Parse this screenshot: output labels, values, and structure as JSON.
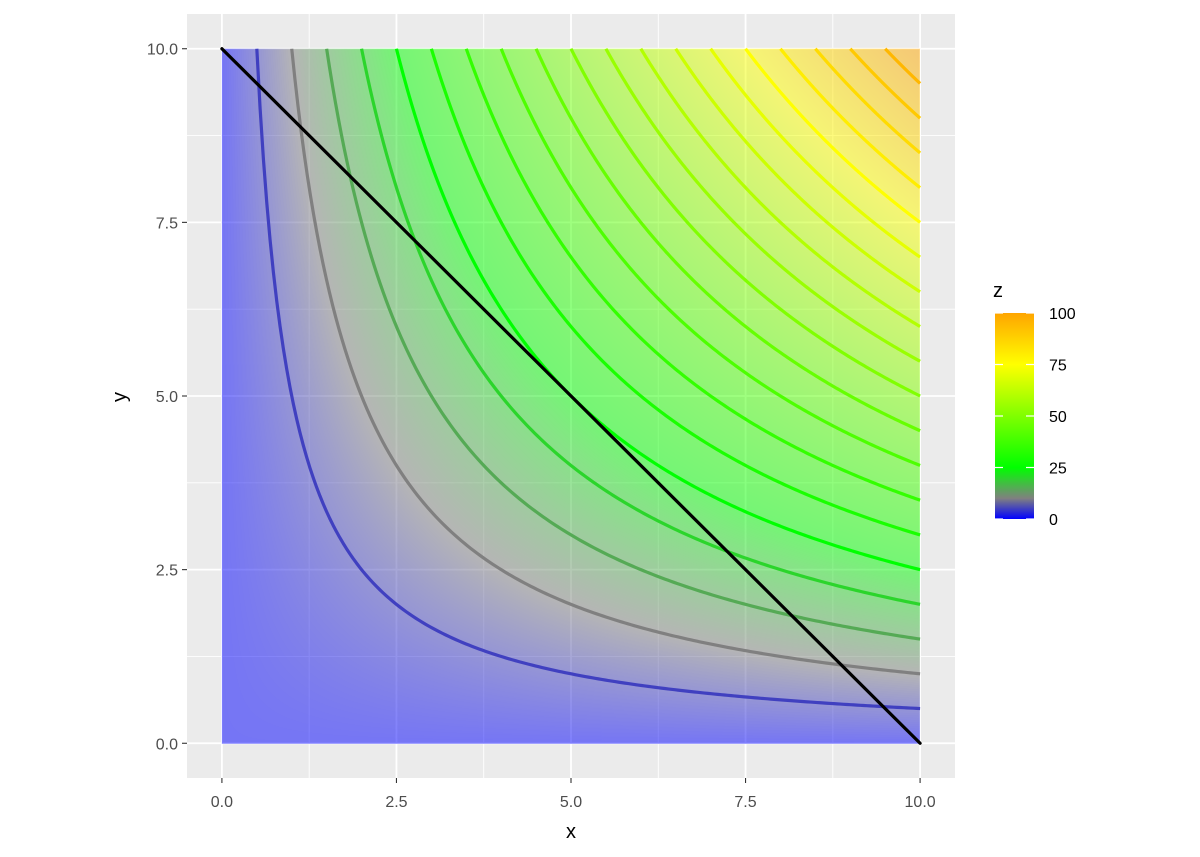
{
  "chart_data": {
    "type": "heatmap",
    "function": "z = x * y",
    "x_range": [
      0,
      10
    ],
    "y_range": [
      0,
      10
    ],
    "xlim": [
      -0.5,
      10.5
    ],
    "ylim": [
      -0.5,
      10.5
    ],
    "xlabel": "x",
    "ylabel": "y",
    "x_ticks": [
      "0.0",
      "2.5",
      "5.0",
      "7.5",
      "10.0"
    ],
    "y_ticks": [
      "0.0",
      "2.5",
      "5.0",
      "7.5",
      "10.0"
    ],
    "x_tick_values": [
      0,
      2.5,
      5,
      7.5,
      10
    ],
    "y_tick_values": [
      0,
      2.5,
      5,
      7.5,
      10
    ],
    "contour_levels": [
      5,
      10,
      15,
      20,
      25,
      30,
      35,
      40,
      45,
      50,
      55,
      60,
      65,
      70,
      75,
      80,
      85,
      90,
      95
    ],
    "line": {
      "x": [
        0,
        10
      ],
      "y": [
        10,
        0
      ],
      "color": "#000000"
    },
    "colorscale": [
      {
        "value": 0,
        "color": "#0000ff"
      },
      {
        "value": 10,
        "color": "#808080"
      },
      {
        "value": 25,
        "color": "#00ff00"
      },
      {
        "value": 75,
        "color": "#ffff00"
      },
      {
        "value": 100,
        "color": "#ffa500"
      }
    ],
    "fill_opacity": 0.5,
    "grid": true,
    "legend": {
      "title": "z",
      "position": "right",
      "ticks": [
        "100",
        "75",
        "50",
        "25",
        "0"
      ],
      "tick_values": [
        100,
        75,
        50,
        25,
        0
      ]
    }
  }
}
